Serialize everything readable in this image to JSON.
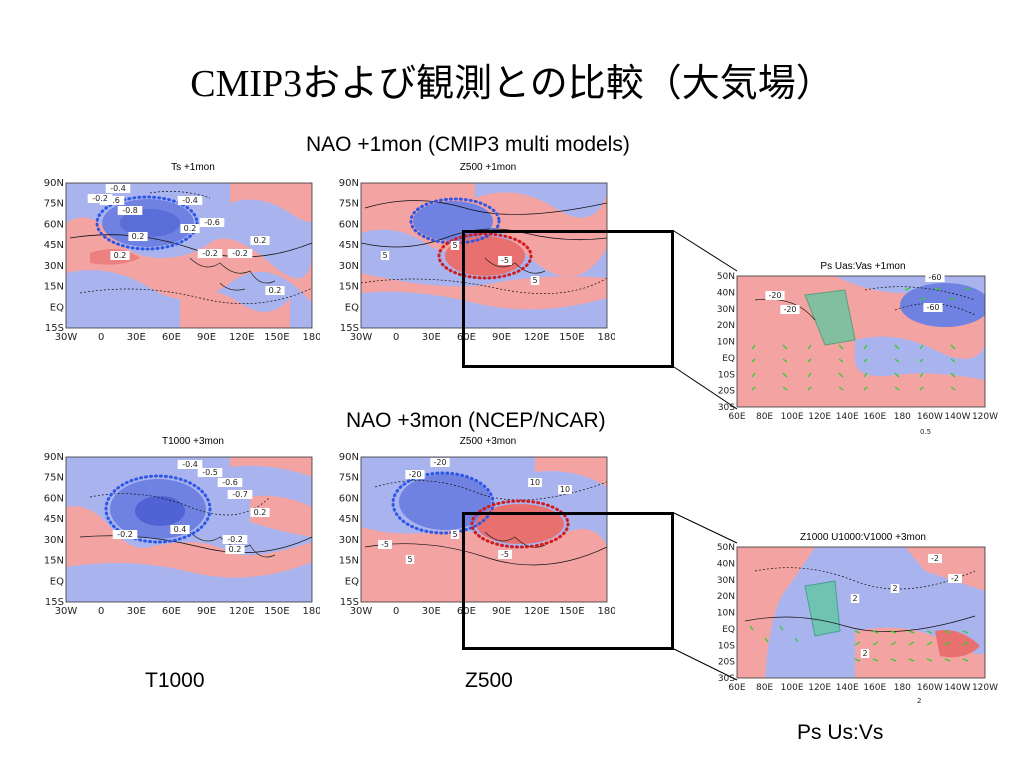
{
  "slide": {
    "title": "CMIP3および観測との比較（大気場）",
    "heading_top": "NAO +1mon   (CMIP3 multi models)",
    "heading_mid": "NAO +3mon   (NCEP/NCAR)",
    "label_t1000": "T1000",
    "label_z500": "Z500",
    "label_ps": "Ps   Us:Vs"
  },
  "panels": [
    {
      "title": "Ts +1mon",
      "contours": [
        "-0.4",
        "-0.6",
        "-0.2",
        "-0.8",
        "-0.4",
        "-0.6",
        "0.2",
        "0.2",
        "0.2",
        "-0.2",
        "-0.2",
        "0.2",
        "0.2"
      ]
    },
    {
      "title": "Z500 +1mon",
      "contours": [
        "5",
        "5",
        "-5",
        "5"
      ]
    },
    {
      "title": "Ps Uas:Vas +1mon",
      "contours": [
        "-20",
        "-20",
        "-60",
        "-60"
      ]
    },
    {
      "title": "T1000 +3mon",
      "contours": [
        "-0.4",
        "-0.5",
        "-0.6",
        "-0.7",
        "0.2",
        "-0.2",
        "0.4",
        "-0.2",
        "0.2"
      ]
    },
    {
      "title": "Z500 +3mon",
      "contours": [
        "-20",
        "-20",
        "10",
        "10",
        "5",
        "-5",
        "5",
        "-5"
      ]
    },
    {
      "title": "Z1000 U1000:V1000 +3mon",
      "contours": [
        "-2",
        "-2",
        "2",
        "2",
        "2"
      ]
    }
  ],
  "axes": {
    "main_x": [
      "30W",
      "0",
      "30E",
      "60E",
      "90E",
      "120E",
      "150E",
      "180"
    ],
    "main_y": [
      "90N",
      "75N",
      "60N",
      "45N",
      "30N",
      "15N",
      "EQ",
      "15S"
    ],
    "zoom_x": [
      "60E",
      "80E",
      "100E",
      "120E",
      "140E",
      "160E",
      "180",
      "160W",
      "140W",
      "120W"
    ],
    "zoom_y": [
      "50N",
      "40N",
      "30N",
      "20N",
      "10N",
      "EQ",
      "10S",
      "20S",
      "30S"
    ],
    "zoom_ref_top": "0.5",
    "zoom_ref_bottom": "2"
  },
  "colors": {
    "positive": "#f4a3a3",
    "positive_strong": "#e8706f",
    "negative": "#a9b4ef",
    "negative_strong": "#6f82e2",
    "highlight_blue": "#2f57e6",
    "highlight_red": "#d21b1b",
    "vector": "#33cc33"
  }
}
